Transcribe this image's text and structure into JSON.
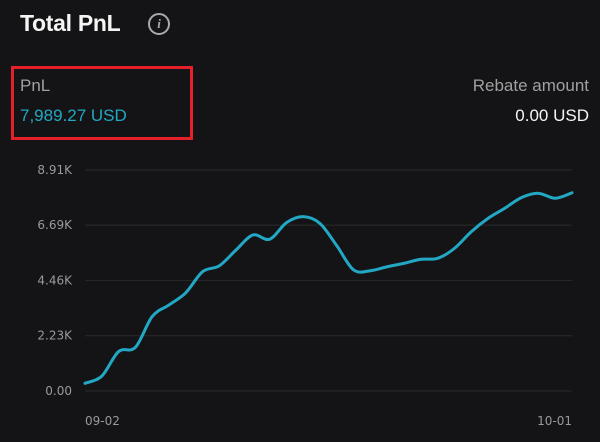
{
  "header": {
    "title": "Total PnL",
    "info_icon": "info-icon"
  },
  "pnl": {
    "label": "PnL",
    "value": "7,989.27 USD",
    "color": "#22a8c4",
    "highlight_color": "#e5202a"
  },
  "rebate": {
    "label": "Rebate amount",
    "value": "0.00 USD"
  },
  "chart_data": {
    "type": "line",
    "title": "",
    "xlabel": "",
    "ylabel": "",
    "ylim": [
      0,
      8910
    ],
    "y_ticks": [
      "8.91K",
      "6.69K",
      "4.46K",
      "2.23K",
      "0.00"
    ],
    "y_tick_values": [
      8910,
      6690,
      4460,
      2230,
      0
    ],
    "x_tick_labels": [
      "09-02",
      "10-01"
    ],
    "grid": true,
    "line_color": "#22a8c4",
    "x": [
      "09-02",
      "09-03",
      "09-04",
      "09-05",
      "09-06",
      "09-07",
      "09-08",
      "09-09",
      "09-10",
      "09-11",
      "09-12",
      "09-13",
      "09-14",
      "09-15",
      "09-16",
      "09-17",
      "09-18",
      "09-19",
      "09-20",
      "09-21",
      "09-22",
      "09-23",
      "09-24",
      "09-25",
      "09-26",
      "09-27",
      "09-28",
      "09-29",
      "09-30",
      "10-01"
    ],
    "values": [
      310,
      600,
      1590,
      1760,
      3000,
      3470,
      3960,
      4810,
      5050,
      5690,
      6290,
      6120,
      6790,
      7030,
      6750,
      5850,
      4880,
      4850,
      5010,
      5150,
      5310,
      5350,
      5750,
      6420,
      6960,
      7370,
      7800,
      7970,
      7770,
      7989.27
    ]
  }
}
